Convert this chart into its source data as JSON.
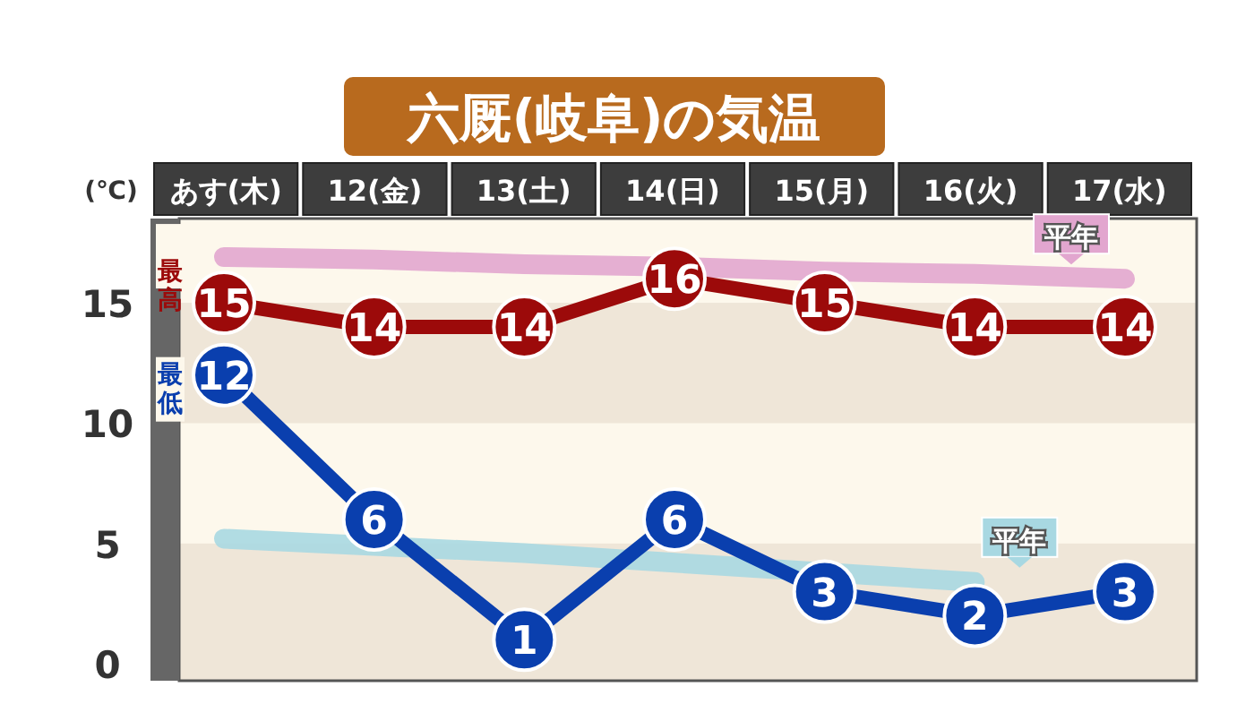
{
  "chart_data": {
    "type": "line",
    "title": "六厩(岐阜)の気温",
    "ylabel": "(℃)",
    "categories": [
      "あす(木)",
      "12(金)",
      "13(土)",
      "14(日)",
      "15(月)",
      "16(火)",
      "17(水)"
    ],
    "ylim": [
      -0.7,
      18.5
    ],
    "yticks": [
      0,
      5,
      10,
      15
    ],
    "series": [
      {
        "name": "平年",
        "color": "#e2a6cf",
        "values": [
          16.9,
          16.8,
          16.6,
          16.5,
          16.3,
          16.2,
          16.0
        ],
        "marker": "none",
        "data_labels": false
      },
      {
        "name": "平年",
        "color": "#a8d8e2",
        "values": [
          5.2,
          4.9,
          4.6,
          4.2,
          3.8,
          3.4,
          null
        ],
        "marker": "none",
        "data_labels": false
      },
      {
        "name": "最高",
        "color": "#9c0a0a",
        "values": [
          15,
          14,
          14,
          16,
          15,
          14,
          14
        ],
        "marker": "circle",
        "data_labels": true
      },
      {
        "name": "最低",
        "color": "#0a3fae",
        "values": [
          12,
          6,
          1,
          6,
          3,
          2,
          3
        ],
        "marker": "circle",
        "data_labels": true
      }
    ],
    "bands": [
      {
        "axis": "y",
        "from": 10,
        "to": 15,
        "color": "#efe6d8"
      },
      {
        "axis": "y",
        "from": -0.7,
        "to": 5,
        "color": "#efe6d8"
      }
    ]
  }
}
